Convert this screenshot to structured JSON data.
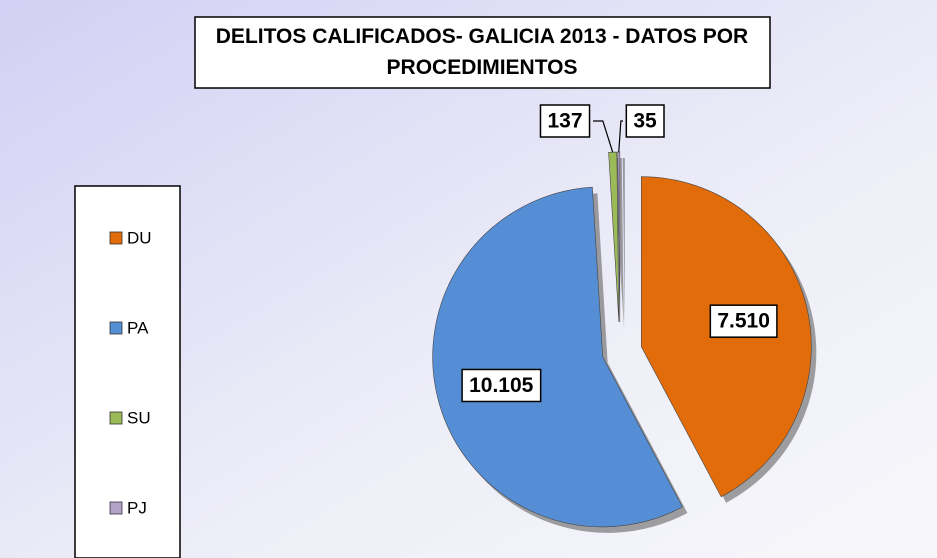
{
  "chart_data": {
    "type": "pie",
    "title": "DELITOS CALIFICADOS- GALICIA 2013 - DATOS POR PROCEDIMIENTOS",
    "categories": [
      "DU",
      "PA",
      "SU",
      "PJ"
    ],
    "values": [
      7510,
      10105,
      137,
      35
    ],
    "value_labels": [
      "7.510",
      "10.105",
      "137",
      "35"
    ],
    "colors": [
      "#e36c0a",
      "#558ed5",
      "#9bbb59",
      "#b3a2c7"
    ],
    "legend": "left"
  }
}
